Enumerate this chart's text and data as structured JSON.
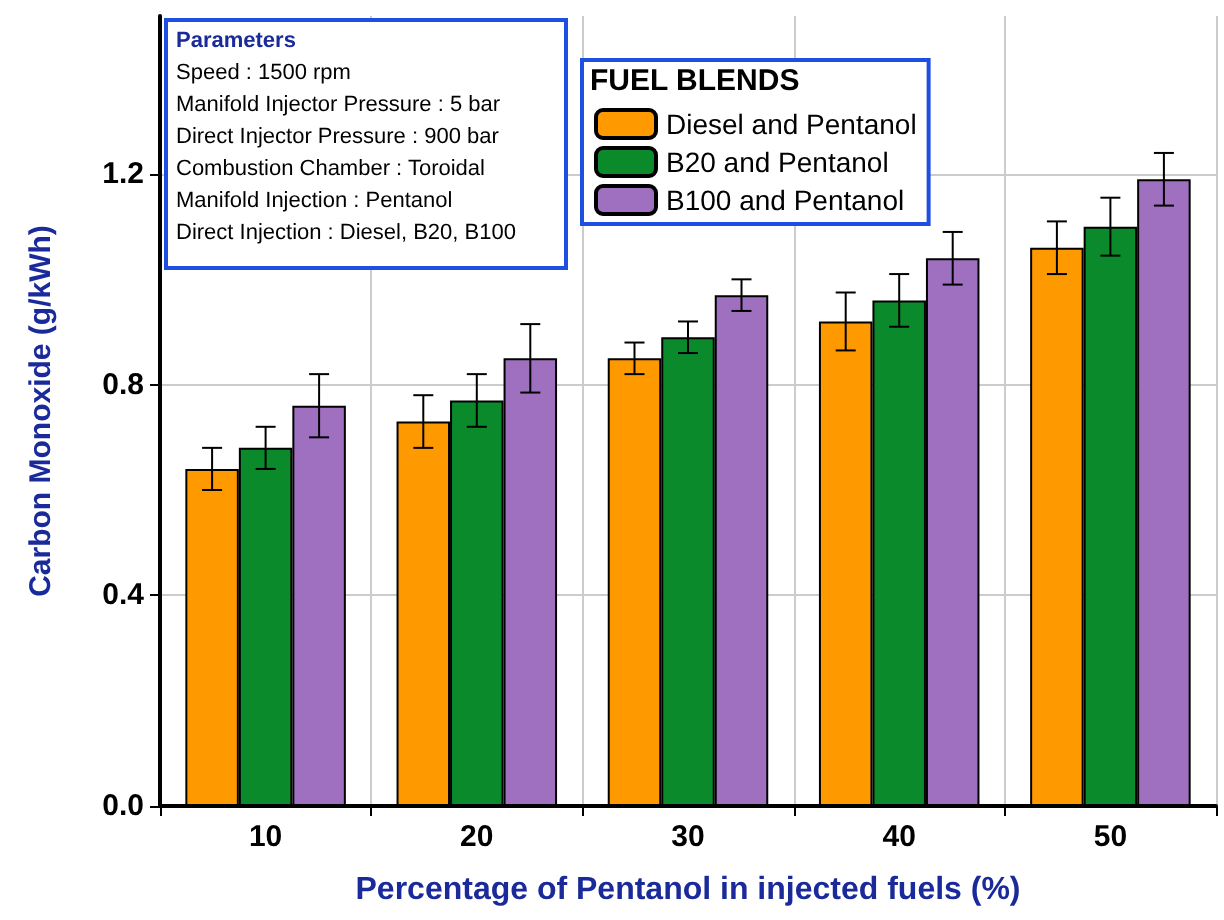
{
  "chart_data": {
    "type": "bar",
    "xlabel": "Percentage of Pentanol in injected fuels (%)",
    "ylabel": "Carbon Monoxide (g/kWh)",
    "legend_title": "FUEL BLENDS",
    "categories": [
      "10",
      "20",
      "30",
      "40",
      "50"
    ],
    "series": [
      {
        "name": "Diesel and Pentanol",
        "color": "#ff9900",
        "values": [
          0.64,
          0.73,
          0.85,
          0.92,
          1.06
        ],
        "errors": [
          0.04,
          0.05,
          0.03,
          0.055,
          0.05
        ]
      },
      {
        "name": "B20 and Pentanol",
        "color": "#0a8a2a",
        "values": [
          0.68,
          0.77,
          0.89,
          0.96,
          1.1
        ],
        "errors": [
          0.04,
          0.05,
          0.03,
          0.05,
          0.055
        ]
      },
      {
        "name": "B100 and Pentanol",
        "color": "#a070c0",
        "values": [
          0.76,
          0.85,
          0.97,
          1.04,
          1.19
        ],
        "errors": [
          0.06,
          0.065,
          0.03,
          0.05,
          0.05
        ]
      }
    ],
    "ylim": [
      0,
      1.5
    ],
    "yticks": [
      {
        "value": 0,
        "label": "0.0"
      },
      0.4,
      0.8,
      1.2
    ],
    "grid": true,
    "legend": "top",
    "annotations": [
      "Parameters",
      "Speed : 1500 rpm",
      "Manifold Injector Pressure : 5 bar",
      "Direct Injector Pressure : 900 bar",
      "Combustion Chamber : Toroidal",
      "Manifold Injection : Pentanol",
      "Direct Injection : Diesel, B20, B100"
    ]
  }
}
